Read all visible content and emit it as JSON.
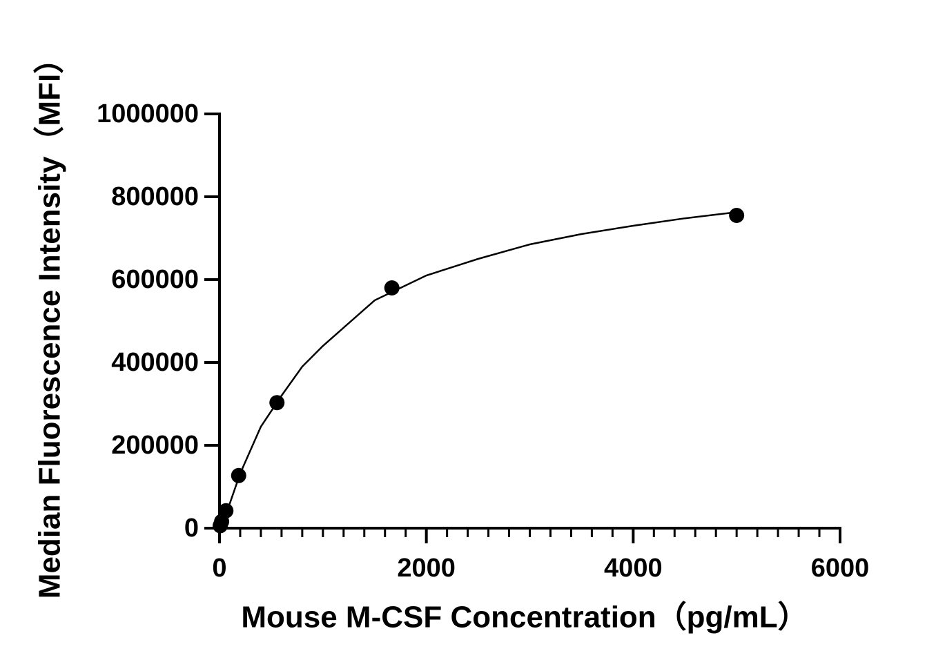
{
  "chart_data": {
    "type": "scatter",
    "x_label": "Mouse M-CSF Concentration（pg/mL）",
    "y_label": "Median Fluorescence Intensity（MFI）",
    "xlim": [
      0,
      6000
    ],
    "ylim": [
      0,
      1000000
    ],
    "xticks": [
      0,
      2000,
      4000,
      6000
    ],
    "xminorticks": [
      200,
      400,
      600,
      800,
      1000,
      1200,
      1400,
      1600,
      1800,
      2200,
      2400,
      2600,
      2800,
      3000,
      3200,
      3400,
      3600,
      3800,
      4200,
      4400,
      4600,
      4800,
      5000,
      5200,
      5400,
      5600,
      5800
    ],
    "yticks": [
      0,
      200000,
      400000,
      600000,
      800000,
      1000000
    ],
    "series": [
      {
        "mode": "markers",
        "color": "#000000",
        "x": [
          5000,
          1666.67,
          555.56,
          185.19,
          61.73,
          20.58,
          6.86
        ],
        "values": [
          755000,
          580000,
          303000,
          127000,
          42000,
          16000,
          6000
        ]
      },
      {
        "mode": "line",
        "color": "#000000",
        "x": [
          0,
          100,
          200,
          400,
          600,
          800,
          1000,
          1500,
          2000,
          2500,
          3000,
          3500,
          4000,
          4500,
          5000
        ],
        "values": [
          0,
          60000,
          132000,
          245000,
          320000,
          390000,
          440000,
          550000,
          610000,
          650000,
          685000,
          710000,
          730000,
          748000,
          763000
        ]
      }
    ]
  }
}
